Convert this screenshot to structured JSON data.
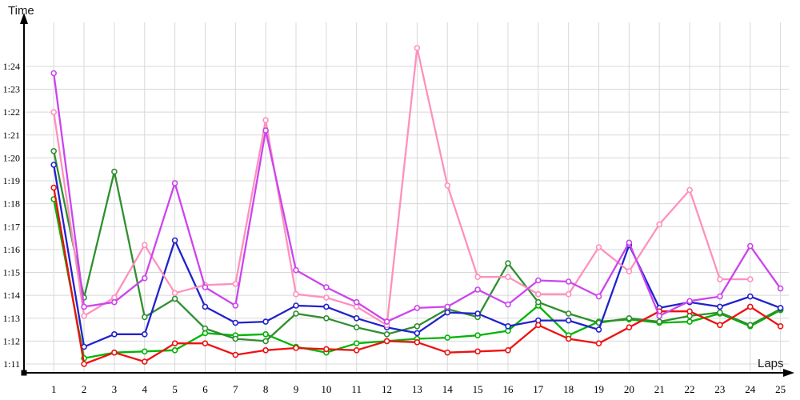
{
  "axes": {
    "y_title": "Time",
    "x_title": "Laps",
    "axis_color": "#000000",
    "grid_color": "#d8d8d8",
    "tick_label_color": "#000000",
    "y_tick_labels": [
      "1:11",
      "1:12",
      "1:13",
      "1:14",
      "1:15",
      "1:16",
      "1:17",
      "1:18",
      "1:19",
      "1:20",
      "1:21",
      "1:22",
      "1:23",
      "1:24"
    ],
    "x_tick_labels": [
      "1",
      "2",
      "3",
      "4",
      "5",
      "6",
      "7",
      "8",
      "9",
      "10",
      "11",
      "12",
      "13",
      "14",
      "15",
      "16",
      "17",
      "18",
      "19",
      "20",
      "21",
      "22",
      "23",
      "24",
      "25"
    ]
  },
  "chart_data": {
    "type": "line",
    "title": "Lap times per lap (no title shown in image)",
    "xlabel": "Laps",
    "ylabel": "Time",
    "x": [
      1,
      2,
      3,
      4,
      5,
      6,
      7,
      8,
      9,
      10,
      11,
      12,
      13,
      14,
      15,
      16,
      17,
      18,
      19,
      20,
      21,
      22,
      23,
      24,
      25
    ],
    "x_range": [
      1,
      25
    ],
    "y_unit": "lap time m:ss, stored as seconds past 1:00 (e.g. 78.7 = 1:18.7)",
    "ylim_seconds": [
      71,
      85
    ],
    "y_gridlines_seconds": [
      71,
      72,
      73,
      74,
      75,
      76,
      77,
      78,
      79,
      80,
      81,
      82,
      83,
      84
    ],
    "grid": true,
    "legend": "none",
    "marker": "open-circle",
    "series": [
      {
        "name": "green-light",
        "color": "#00b400",
        "values": [
          78.2,
          71.25,
          71.5,
          71.55,
          71.6,
          72.35,
          72.25,
          72.3,
          71.75,
          71.5,
          71.9,
          72.0,
          72.1,
          72.15,
          72.25,
          72.45,
          73.55,
          72.25,
          72.85,
          72.95,
          72.8,
          72.85,
          73.2,
          72.65,
          73.35
        ]
      },
      {
        "name": "green-dark",
        "color": "#2f8f2f",
        "values": [
          80.3,
          73.9,
          79.4,
          73.05,
          73.85,
          72.55,
          72.1,
          72.0,
          73.2,
          73.0,
          72.6,
          72.3,
          72.65,
          73.4,
          73.05,
          75.4,
          73.7,
          73.2,
          72.8,
          73.0,
          72.85,
          73.1,
          73.25,
          72.7,
          73.4
        ]
      },
      {
        "name": "blue",
        "color": "#2222cc",
        "values": [
          79.7,
          71.75,
          72.3,
          72.3,
          76.4,
          73.5,
          72.8,
          72.85,
          73.55,
          73.5,
          73.0,
          72.6,
          72.35,
          73.25,
          73.2,
          72.65,
          72.9,
          72.9,
          72.5,
          76.2,
          73.45,
          73.7,
          73.5,
          73.95,
          73.45
        ]
      },
      {
        "name": "red",
        "color": "#ee1111",
        "values": [
          78.7,
          71.0,
          71.5,
          71.1,
          71.9,
          71.9,
          71.4,
          71.6,
          71.7,
          71.65,
          71.6,
          72.0,
          71.95,
          71.5,
          71.55,
          71.6,
          72.7,
          72.1,
          71.9,
          72.6,
          73.3,
          73.3,
          72.7,
          73.5,
          72.65
        ]
      },
      {
        "name": "pink",
        "color": "#ff90bd",
        "values": [
          82.0,
          73.1,
          73.9,
          76.2,
          74.1,
          74.45,
          74.5,
          81.65,
          74.05,
          73.9,
          73.5,
          72.7,
          84.8,
          78.8,
          74.8,
          74.8,
          74.05,
          74.05,
          76.1,
          75.05,
          77.1,
          78.6,
          74.7,
          74.7,
          null
        ]
      },
      {
        "name": "violet",
        "color": "#cc44ee",
        "values": [
          83.7,
          73.5,
          73.7,
          74.75,
          78.9,
          74.35,
          73.55,
          81.2,
          75.1,
          74.35,
          73.7,
          72.85,
          73.45,
          73.5,
          74.25,
          73.6,
          74.65,
          74.6,
          73.95,
          76.3,
          73.1,
          73.75,
          73.95,
          76.15,
          74.3
        ]
      }
    ]
  }
}
